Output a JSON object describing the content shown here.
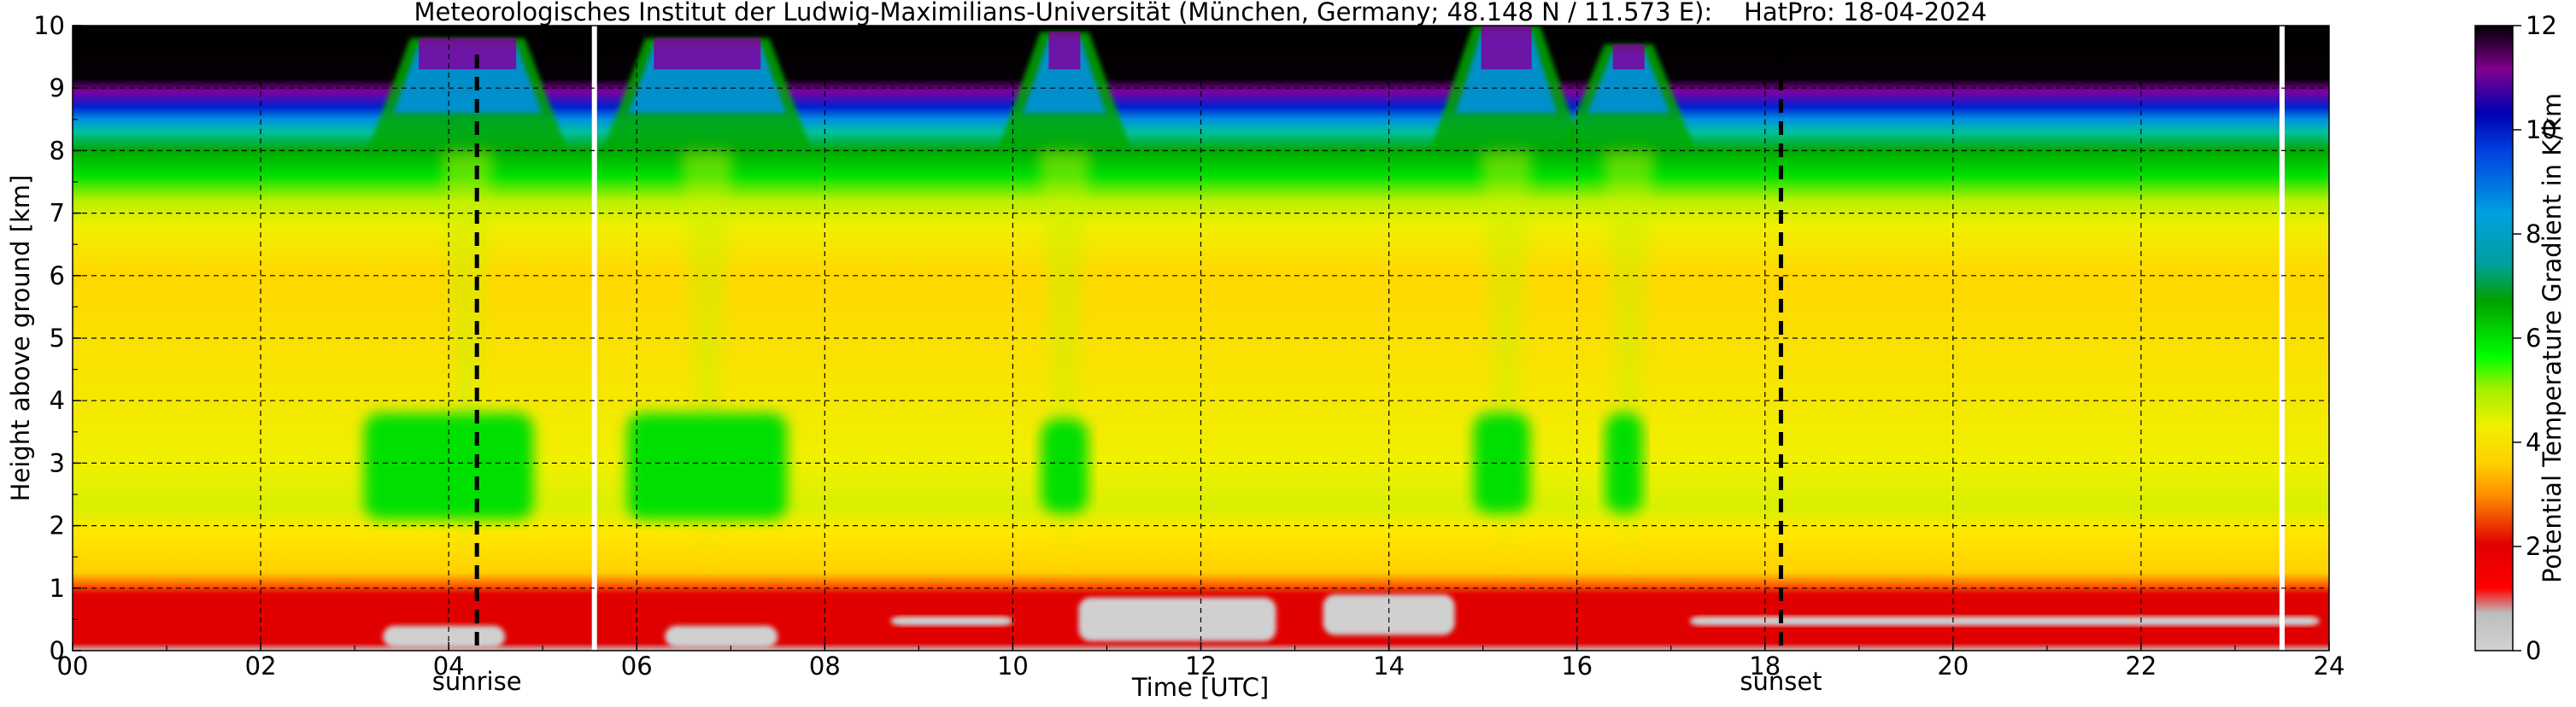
{
  "chart_data": {
    "type": "heatmap",
    "title": "Meteorologisches Institut der Ludwig-Maximilians-Universität (München, Germany; 48.148 N / 11.573 E):    HatPro: 18-04-2024",
    "xlabel": "Time [UTC]",
    "ylabel": "Height above ground [km]",
    "xlim": [
      0,
      24
    ],
    "ylim": [
      0,
      10
    ],
    "x_ticks": [
      0,
      2,
      4,
      6,
      8,
      10,
      12,
      14,
      16,
      18,
      20,
      22,
      24
    ],
    "x_tick_labels": [
      "00",
      "02",
      "04",
      "06",
      "08",
      "10",
      "12",
      "14",
      "16",
      "18",
      "20",
      "22",
      "24"
    ],
    "y_ticks": [
      0,
      1,
      2,
      3,
      4,
      5,
      6,
      7,
      8,
      9,
      10
    ],
    "y_tick_labels": [
      "0",
      "1",
      "2",
      "3",
      "4",
      "5",
      "6",
      "7",
      "8",
      "9",
      "10"
    ],
    "grid": true,
    "colorbar": {
      "label": "Potential Temperature Gradient in K/km",
      "range": [
        0,
        12
      ],
      "ticks": [
        0,
        2,
        4,
        6,
        8,
        10,
        12
      ],
      "tick_labels": [
        "0",
        "2",
        "4",
        "6",
        "8",
        "10",
        "12"
      ],
      "colors": [
        "#cfcfcf",
        "#bfbfbf",
        "#e00000",
        "#ff6a00",
        "#ffd000",
        "#ffe800",
        "#c8f000",
        "#00e000",
        "#00a000",
        "#00a8a8",
        "#0090e0",
        "#0020d0",
        "#8000a0",
        "#000000"
      ]
    },
    "annotations": [
      {
        "label": "sunrise",
        "x": 4.3
      },
      {
        "label": "sunset",
        "x": 18.17
      }
    ],
    "data_gaps_x": [
      5.55,
      23.5
    ],
    "green_blobs": [
      {
        "x0": 3.1,
        "x1": 4.9,
        "y0": 2.1,
        "y1": 3.8
      },
      {
        "x0": 5.9,
        "x1": 7.6,
        "y0": 2.1,
        "y1": 3.8
      },
      {
        "x0": 10.3,
        "x1": 10.8,
        "y0": 2.2,
        "y1": 3.7
      },
      {
        "x0": 14.9,
        "x1": 15.5,
        "y0": 2.2,
        "y1": 3.8
      },
      {
        "x0": 16.3,
        "x1": 16.7,
        "y0": 2.2,
        "y1": 3.8
      }
    ],
    "gray_patches": [
      {
        "x0": 3.3,
        "x1": 4.6,
        "y0": 0.05,
        "y1": 0.4
      },
      {
        "x0": 6.3,
        "x1": 7.5,
        "y0": 0.05,
        "y1": 0.4
      },
      {
        "x0": 10.7,
        "x1": 12.8,
        "y0": 0.15,
        "y1": 0.85
      },
      {
        "x0": 13.3,
        "x1": 14.7,
        "y0": 0.25,
        "y1": 0.9
      },
      {
        "x0": 17.2,
        "x1": 23.9,
        "y0": 0.4,
        "y1": 0.55
      },
      {
        "x0": 8.7,
        "x1": 10.0,
        "y0": 0.4,
        "y1": 0.55
      }
    ],
    "peaks": [
      {
        "x": 3.5,
        "x1": 4.9,
        "y": 9.8
      },
      {
        "x": 6.0,
        "x1": 7.5,
        "y": 9.8
      },
      {
        "x": 10.2,
        "x1": 10.9,
        "y": 9.9
      },
      {
        "x": 14.8,
        "x1": 15.7,
        "y": 10.0
      },
      {
        "x": 16.2,
        "x1": 16.9,
        "y": 9.7
      }
    ]
  }
}
